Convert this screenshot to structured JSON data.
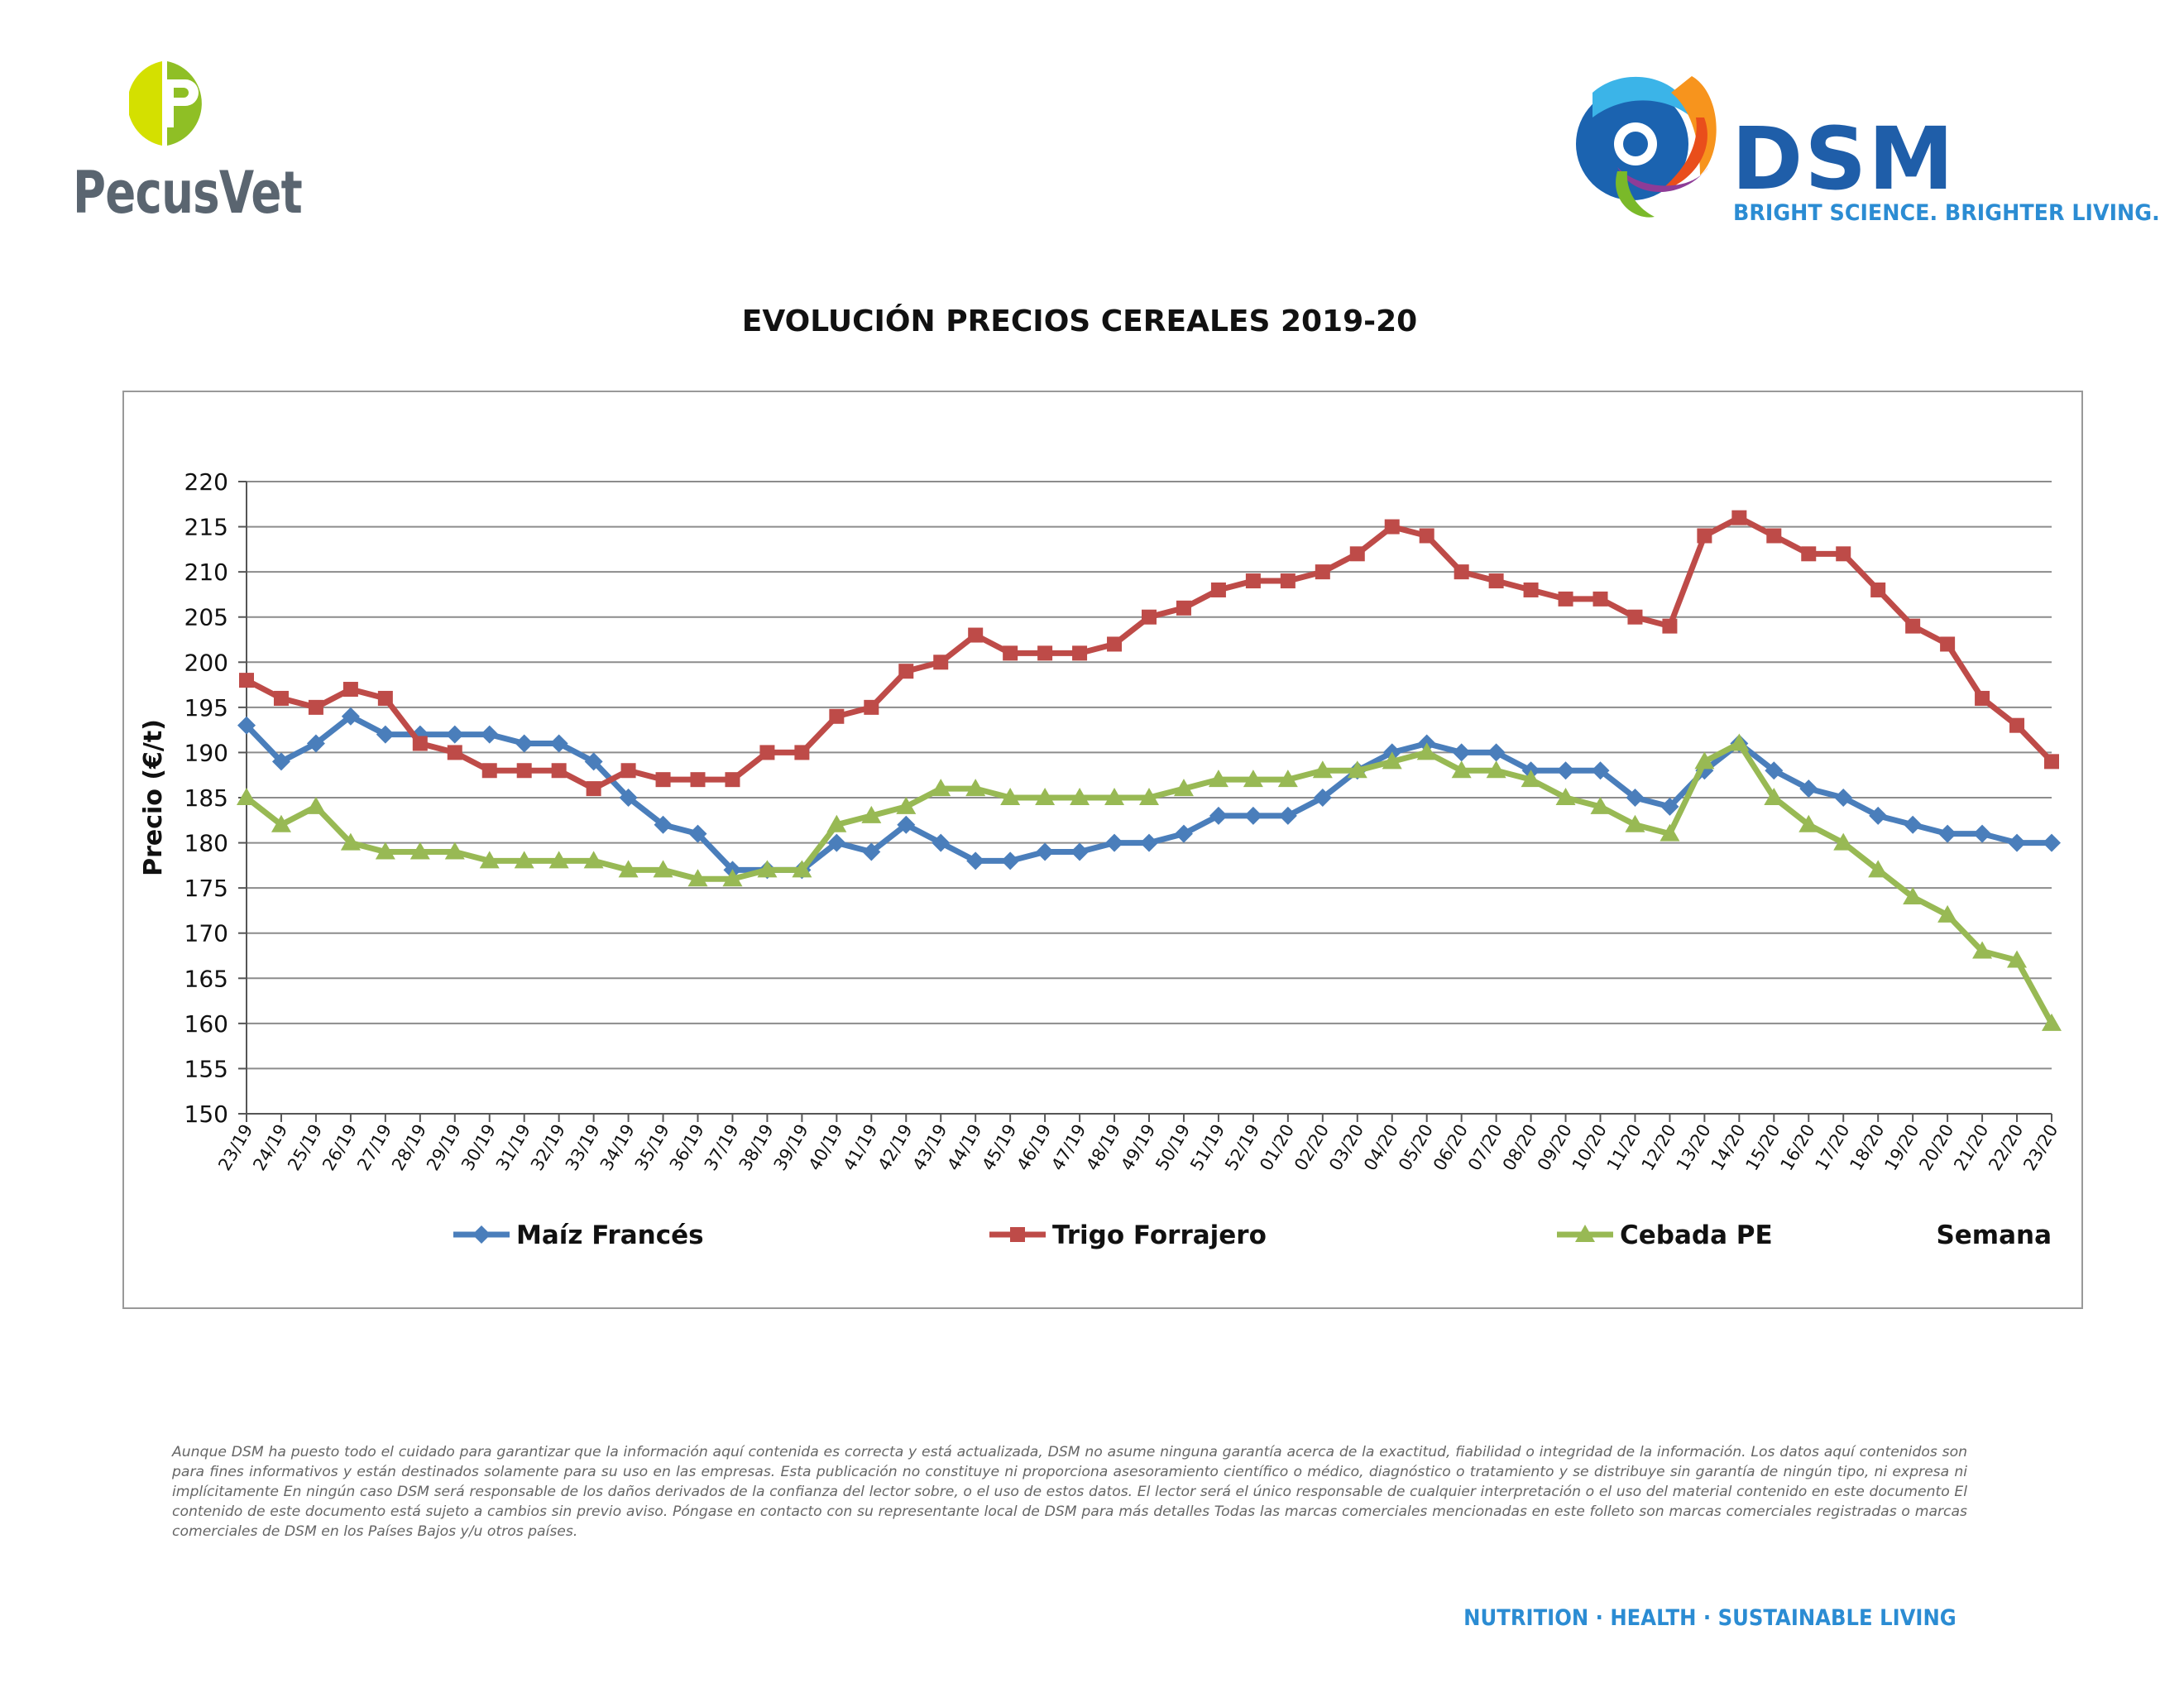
{
  "header": {
    "left_logo_text": "PecusVet",
    "right_logo_word": "DSM",
    "right_logo_tagline": "BRIGHT SCIENCE. BRIGHTER LIVING."
  },
  "colors": {
    "maiz": "#4a7ebb",
    "trigo": "#be4b48",
    "cebada": "#98b954",
    "grid": "#8c8c8c",
    "dsm_blue": "#1f5ea9",
    "dsm_light_blue": "#2b8cd3"
  },
  "chart_data": {
    "type": "line",
    "title": "EVOLUCIÓN PRECIOS CEREALES 2019-20",
    "ylabel": "Precio (€/t)",
    "xlabel": "Semana",
    "ylim": [
      150,
      220
    ],
    "yticks": [
      220,
      215,
      210,
      205,
      200,
      195,
      190,
      185,
      180,
      175,
      170,
      165,
      160,
      155,
      150
    ],
    "grid": true,
    "legend_position": "bottom",
    "categories": [
      "23/19",
      "24/19",
      "25/19",
      "26/19",
      "27/19",
      "28/19",
      "29/19",
      "30/19",
      "31/19",
      "32/19",
      "33/19",
      "34/19",
      "35/19",
      "36/19",
      "37/19",
      "38/19",
      "39/19",
      "40/19",
      "41/19",
      "42/19",
      "43/19",
      "44/19",
      "45/19",
      "46/19",
      "47/19",
      "48/19",
      "49/19",
      "50/19",
      "51/19",
      "52/19",
      "01/20",
      "02/20",
      "03/20",
      "04/20",
      "05/20",
      "06/20",
      "07/20",
      "08/20",
      "09/20",
      "10/20",
      "11/20",
      "12/20",
      "13/20",
      "14/20",
      "15/20",
      "16/20",
      "17/20",
      "18/20",
      "19/20",
      "20/20",
      "21/20",
      "22/20",
      "23/20"
    ],
    "series": [
      {
        "name": "Maíz Francés",
        "marker": "diamond",
        "values": [
          193,
          189,
          191,
          194,
          192,
          192,
          192,
          192,
          191,
          191,
          189,
          185,
          182,
          181,
          177,
          177,
          177,
          180,
          179,
          182,
          180,
          178,
          178,
          179,
          179,
          180,
          180,
          181,
          183,
          183,
          183,
          185,
          188,
          190,
          191,
          190,
          190,
          188,
          188,
          188,
          185,
          184,
          188,
          191,
          188,
          186,
          185,
          183,
          182,
          181,
          181,
          180,
          180
        ]
      },
      {
        "name": "Trigo Forrajero",
        "marker": "square",
        "values": [
          198,
          196,
          195,
          197,
          196,
          191,
          190,
          188,
          188,
          188,
          186,
          188,
          187,
          187,
          187,
          190,
          190,
          194,
          195,
          199,
          200,
          203,
          201,
          201,
          201,
          202,
          205,
          206,
          208,
          209,
          209,
          210,
          212,
          215,
          214,
          210,
          209,
          208,
          207,
          207,
          205,
          204,
          214,
          216,
          214,
          212,
          212,
          208,
          204,
          202,
          196,
          193,
          189
        ]
      },
      {
        "name": "Cebada PE",
        "marker": "triangle",
        "values": [
          185,
          182,
          184,
          180,
          179,
          179,
          179,
          178,
          178,
          178,
          178,
          177,
          177,
          176,
          176,
          177,
          177,
          182,
          183,
          184,
          186,
          186,
          185,
          185,
          185,
          185,
          185,
          186,
          187,
          187,
          187,
          188,
          188,
          189,
          190,
          188,
          188,
          187,
          185,
          184,
          182,
          181,
          189,
          191,
          185,
          182,
          180,
          177,
          174,
          172,
          168,
          167,
          160
        ]
      }
    ]
  },
  "disclaimer": "Aunque DSM ha puesto todo el cuidado para garantizar que la información aquí contenida es correcta y está actualizada, DSM no asume ninguna garantía acerca de la exactitud, fiabilidad o integridad de la información. Los datos aquí contenidos son para fines informativos y están destinados solamente para su uso en las empresas. Esta publicación no constituye ni proporciona asesoramiento científico o médico, diagnóstico o tratamiento y se distribuye sin garantía de ningún tipo, ni expresa ni implícitamente En ningún caso DSM será responsable de los daños derivados de la confianza del lector sobre, o el uso de estos datos. El lector será el único responsable de cualquier interpretación o el uso del material contenido en este documento El contenido de este documento está sujeto a cambios sin previo aviso. Póngase en contacto con su representante local de DSM para más detalles Todas las marcas comerciales mencionadas en este folleto son marcas comerciales registradas o marcas comerciales de DSM en los Países Bajos y/u otros países.",
  "footer": {
    "tagline": "NUTRITION · HEALTH · SUSTAINABLE LIVING"
  }
}
